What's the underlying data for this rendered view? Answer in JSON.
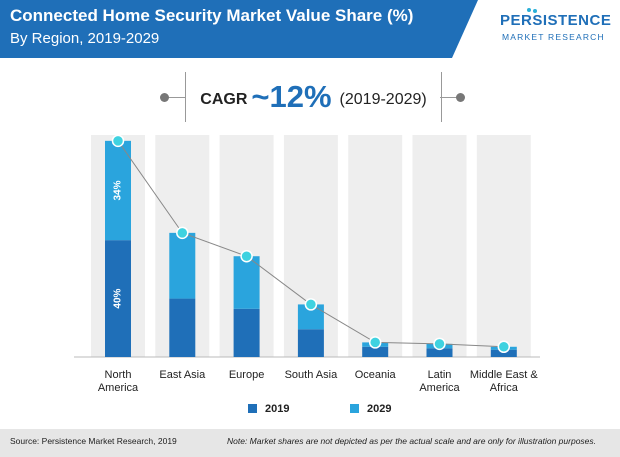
{
  "header": {
    "title": "Connected Home Security Market Value Share (%)",
    "subtitle": "By Region, 2019-2029"
  },
  "logo": {
    "line1": "PERSISTENCE",
    "line2": "MARKET RESEARCH"
  },
  "cagr": {
    "label": "CAGR",
    "value": "~12%",
    "period": "(2019-2029)"
  },
  "footer": {
    "source": "Source: Persistence Market Research, 2019",
    "note": "Note: Market shares are not depicted as per the actual scale and are only for illustration purposes."
  },
  "colors": {
    "header": "#1f6fb8",
    "series_2019": "#1f6fb8",
    "series_2029": "#2aa4dd",
    "marker": "#3fd2e0",
    "panel": "#eeeeee"
  },
  "chart_data": {
    "type": "bar",
    "stacked": true,
    "categories": [
      "North America",
      "East Asia",
      "Europe",
      "South Asia",
      "Oceania",
      "Latin America",
      "Middle East & Africa"
    ],
    "category_lines": [
      [
        "North",
        "America"
      ],
      [
        "East Asia"
      ],
      [
        "Europe"
      ],
      [
        "South Asia"
      ],
      [
        "Oceania"
      ],
      [
        "Latin",
        "America"
      ],
      [
        "Middle East &",
        "Africa"
      ]
    ],
    "series": [
      {
        "name": "2019",
        "values": [
          40,
          20,
          16.5,
          9.5,
          3.5,
          3,
          2.5
        ]
      },
      {
        "name": "2029",
        "values": [
          34,
          22.5,
          18,
          8.5,
          1.5,
          1.5,
          1
        ]
      }
    ],
    "data_labels": [
      {
        "category": "North America",
        "series": "2019",
        "text": "40%"
      },
      {
        "category": "North America",
        "series": "2029",
        "text": "34%"
      }
    ],
    "ylim": [
      0,
      76
    ],
    "legend": {
      "position": "bottom",
      "entries": [
        "2019",
        "2029"
      ]
    }
  }
}
